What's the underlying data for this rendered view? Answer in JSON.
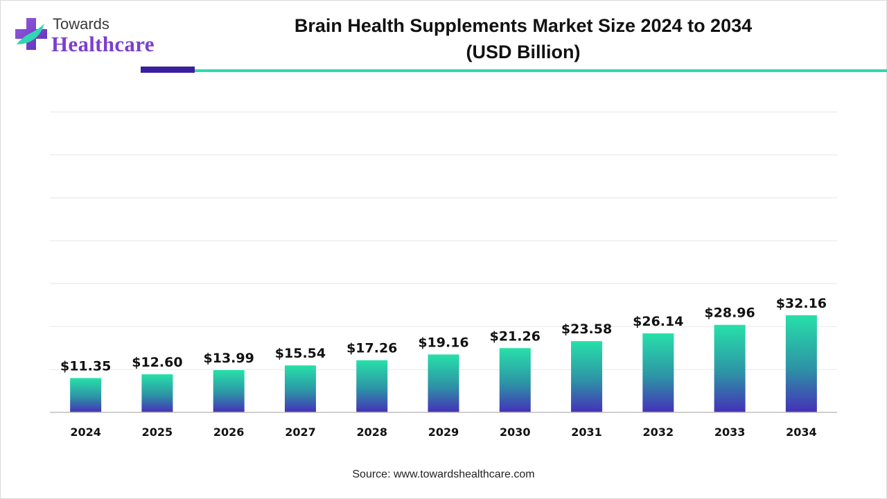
{
  "logo": {
    "line1": "Towards",
    "line2": "Healthcare"
  },
  "header": {
    "title_line1": "Brain Health Supplements Market Size 2024 to 2034",
    "title_line2": "(USD Billion)"
  },
  "colors": {
    "bar_top": "#27e0a9",
    "bar_mid": "#2d93a6",
    "bar_bottom": "#4530b8",
    "gridline": "#e6e6e6",
    "axis": "#bfbfbf",
    "rule_dark": "#3a1f9e",
    "rule_teal": "#2fd8b0"
  },
  "chart_data": {
    "type": "bar",
    "categories": [
      "2024",
      "2025",
      "2026",
      "2027",
      "2028",
      "2029",
      "2030",
      "2031",
      "2032",
      "2033",
      "2034"
    ],
    "values": [
      11.35,
      12.6,
      13.99,
      15.54,
      17.26,
      19.16,
      21.26,
      23.58,
      26.14,
      28.96,
      32.16
    ],
    "value_labels": [
      "$11.35",
      "$12.60",
      "$13.99",
      "$15.54",
      "$17.26",
      "$19.16",
      "$21.26",
      "$23.58",
      "$26.14",
      "$28.96",
      "$32.16"
    ],
    "title": "Brain Health Supplements Market Size 2024 to 2034 (USD Billion)",
    "xlabel": "",
    "ylabel": "",
    "ylim": [
      0,
      35
    ],
    "grid": true,
    "legend": "none"
  },
  "footer": {
    "source": "Source: www.towardshealthcare.com"
  }
}
